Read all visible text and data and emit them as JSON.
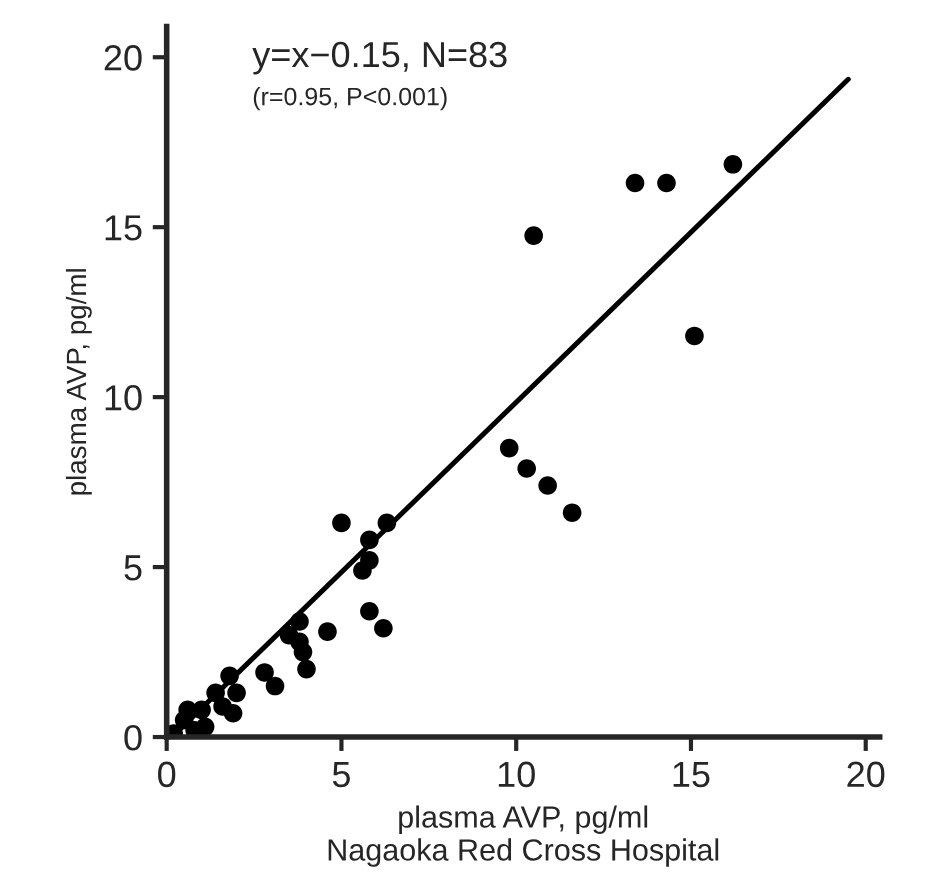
{
  "chart_data": {
    "type": "scatter",
    "xlabel": "plasma AVP, pg/ml\nNagaoka Red Cross Hospital",
    "ylabel": "plasma AVP, pg/ml",
    "annotations": [
      "y=x−0.15, N=83",
      "(r=0.95, P<0.001)"
    ],
    "xlim": [
      0,
      20.4
    ],
    "ylim": [
      0,
      20.9
    ],
    "xticks": [
      0,
      5,
      10,
      15,
      20
    ],
    "yticks": [
      0,
      5,
      10,
      15,
      20
    ],
    "grid": false,
    "legend": false,
    "series": [
      {
        "marker": "circle",
        "color": "#000000",
        "x": [
          16.2,
          13.4,
          14.3,
          10.5,
          15.1,
          9.8,
          10.3,
          10.9,
          11.6,
          5.0,
          6.3,
          5.8,
          5.8,
          5.6,
          5.8,
          6.2,
          3.8,
          3.5,
          3.8,
          3.9,
          4.0,
          4.6,
          2.8,
          3.1,
          1.8,
          1.4,
          2.0,
          1.9,
          1.6,
          1.0,
          0.6,
          0.5,
          1.1,
          0.8,
          0.2
        ],
        "values": [
          16.85,
          16.3,
          16.3,
          14.75,
          11.8,
          8.5,
          7.9,
          7.4,
          6.6,
          6.3,
          6.3,
          5.8,
          5.2,
          4.9,
          3.7,
          3.2,
          3.4,
          3.0,
          2.8,
          2.5,
          2.0,
          3.1,
          1.9,
          1.5,
          1.8,
          1.3,
          1.3,
          0.7,
          0.9,
          0.8,
          0.8,
          0.5,
          0.3,
          0.2,
          0.1
        ]
      },
      {
        "type": "line",
        "color": "#000000",
        "x": [
          0.15,
          19.5
        ],
        "values": [
          0,
          19.35
        ]
      }
    ]
  }
}
